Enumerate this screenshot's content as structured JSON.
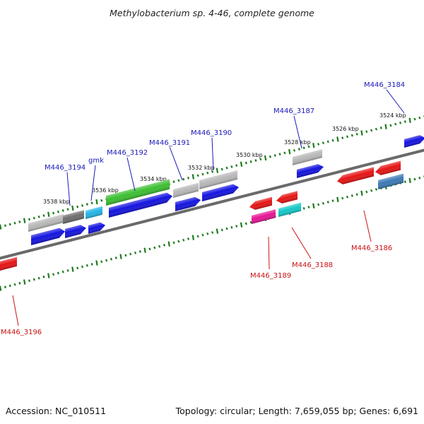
{
  "title": "Methylobacterium sp. 4-46, complete genome",
  "footer": {
    "accession": "Accession: NC_010511",
    "summary": "Topology: circular; Length: 7,659,055 bp; Genes: 6,691"
  },
  "colors": {
    "backbone": "#6a6a6a",
    "tick": "#1e7a1e",
    "label_forward": "#1a1ab8",
    "label_reverse": "#c81414"
  },
  "ruler": {
    "unit": "kbp",
    "labels": [
      "3538 kbp",
      "3536 kbp",
      "3534 kbp",
      "3532 kbp",
      "3530 kbp",
      "3528 kbp",
      "3526 kbp",
      "3524 kbp"
    ]
  },
  "genes": [
    {
      "id": "g1",
      "strand": "+",
      "color": "#b8b8b8",
      "shape": "box"
    },
    {
      "id": "g2",
      "strand": "+",
      "color": "#6e6e6e",
      "shape": "box"
    },
    {
      "id": "g3",
      "strand": "+",
      "color": "#24b4e6",
      "shape": "box"
    },
    {
      "id": "g4",
      "strand": "+",
      "color": "#3cbf30",
      "shape": "box"
    },
    {
      "id": "g5",
      "strand": "+",
      "color": "#b8b8b8",
      "shape": "box"
    },
    {
      "id": "g6",
      "strand": "+",
      "color": "#b8b8b8",
      "shape": "box"
    },
    {
      "id": "g7",
      "strand": "+",
      "color": "#b8b8b8",
      "shape": "box"
    },
    {
      "id": "g8",
      "strand": "+",
      "color": "#1414e0",
      "shape": "arrow"
    },
    {
      "id": "g9",
      "strand": "+",
      "color": "#1414e0",
      "shape": "arrow"
    },
    {
      "id": "g10",
      "strand": "+",
      "color": "#1414e0",
      "shape": "arrow"
    },
    {
      "id": "g11",
      "strand": "+",
      "color": "#1414e0",
      "shape": "arrow"
    },
    {
      "id": "g12",
      "strand": "+",
      "color": "#1414e0",
      "shape": "arrow"
    },
    {
      "id": "g13",
      "strand": "+",
      "color": "#1414e0",
      "shape": "arrow"
    },
    {
      "id": "g14",
      "strand": "+",
      "color": "#1414e0",
      "shape": "arrow"
    },
    {
      "id": "g15",
      "strand": "+",
      "color": "#1414e0",
      "shape": "arrow"
    },
    {
      "id": "g16",
      "strand": "-",
      "color": "#e61414",
      "shape": "arrow"
    },
    {
      "id": "g17",
      "strand": "-",
      "color": "#e61414",
      "shape": "arrow"
    },
    {
      "id": "g18",
      "strand": "-",
      "color": "#e61496",
      "shape": "box"
    },
    {
      "id": "g19",
      "strand": "-",
      "color": "#14c8c8",
      "shape": "box"
    },
    {
      "id": "g20",
      "strand": "-",
      "color": "#e61414",
      "shape": "arrow"
    },
    {
      "id": "g21",
      "strand": "-",
      "color": "#e61414",
      "shape": "arrow"
    },
    {
      "id": "g22",
      "strand": "-",
      "color": "#3c78b4",
      "shape": "box"
    },
    {
      "id": "g23",
      "strand": "-",
      "color": "#e61414",
      "shape": "box"
    }
  ],
  "gene_labels": [
    {
      "text": "M446_3194",
      "strand": "+"
    },
    {
      "text": "gmk",
      "strand": "+"
    },
    {
      "text": "M446_3192",
      "strand": "+"
    },
    {
      "text": "M446_3191",
      "strand": "+"
    },
    {
      "text": "M446_3190",
      "strand": "+"
    },
    {
      "text": "M446_3187",
      "strand": "+"
    },
    {
      "text": "M446_3184",
      "strand": "+"
    },
    {
      "text": "M446_3189",
      "strand": "-"
    },
    {
      "text": "M446_3188",
      "strand": "-"
    },
    {
      "text": "M446_3186",
      "strand": "-"
    },
    {
      "text": "M446_3196",
      "strand": "-"
    }
  ]
}
